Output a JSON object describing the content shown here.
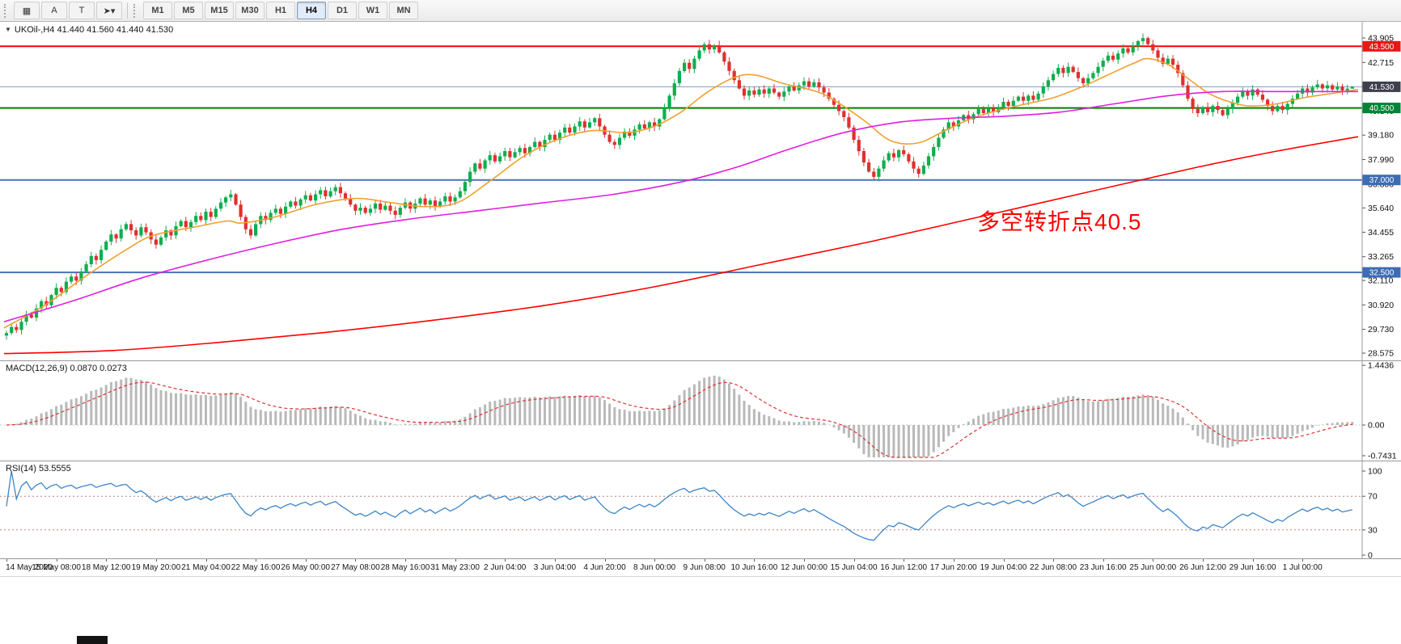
{
  "toolbar": {
    "left_buttons": [
      {
        "name": "charts-button",
        "glyph": "▦"
      },
      {
        "name": "arrow-tool-button",
        "glyph": "A"
      },
      {
        "name": "text-tool-button",
        "glyph": "T"
      },
      {
        "name": "cursor-tool-button",
        "glyph": "➤▾"
      }
    ],
    "timeframes": [
      {
        "label": "M1",
        "active": false
      },
      {
        "label": "M5",
        "active": false
      },
      {
        "label": "M15",
        "active": false
      },
      {
        "label": "M30",
        "active": false
      },
      {
        "label": "H1",
        "active": false
      },
      {
        "label": "H4",
        "active": true
      },
      {
        "label": "D1",
        "active": false
      },
      {
        "label": "W1",
        "active": false
      },
      {
        "label": "MN",
        "active": false
      }
    ]
  },
  "chart": {
    "symbol_line": "UKOil-,H4 41.440 41.560 41.440 41.530",
    "collapse_glyph": "▼",
    "annotation": {
      "text": "多空转折点40.5",
      "color": "#ff0000"
    },
    "y_ticks": [
      43.905,
      42.715,
      41.525,
      40.34,
      39.18,
      37.99,
      36.8,
      35.64,
      34.455,
      33.265,
      32.11,
      30.92,
      29.73,
      28.575
    ],
    "price_levels": [
      {
        "value": 43.5,
        "label": "43.500",
        "badge": "#e81717"
      },
      {
        "value": 40.5,
        "label": "40.500",
        "badge": "#008536"
      },
      {
        "value": 37.0,
        "label": "37.000",
        "badge": "#3c6cb4"
      },
      {
        "value": 32.5,
        "label": "32.500",
        "badge": "#3c6cb4"
      },
      {
        "value": 41.53,
        "label": "41.530",
        "badge": "#3f3f4e"
      }
    ]
  },
  "macd_panel": {
    "label": "MACD(12,26,9) 0.0870 0.0273",
    "params": {
      "fast": 12,
      "slow": 26,
      "signal": 9
    },
    "y_ticks": [
      1.4436,
      0,
      -0.7431
    ],
    "histogram_color": "#b9b9b9",
    "signal_color": "#e03131"
  },
  "rsi_panel": {
    "label": "RSI(14) 53.5555",
    "period": 14,
    "levels": [
      70,
      30
    ],
    "y_ticks": [
      100,
      70,
      30,
      0
    ],
    "line_color": "#3d85c8"
  },
  "time_axis": {
    "labels": [
      "14 May 2020",
      "15 May 08:00",
      "18 May 12:00",
      "19 May 20:00",
      "21 May 04:00",
      "22 May 16:00",
      "26 May 00:00",
      "27 May 08:00",
      "28 May 16:00",
      "31 May 23:00",
      "2 Jun 04:00",
      "3 Jun 04:00",
      "4 Jun 20:00",
      "8 Jun 00:00",
      "9 Jun 08:00",
      "10 Jun 16:00",
      "12 Jun 00:00",
      "15 Jun 04:00",
      "16 Jun 12:00",
      "17 Jun 20:00",
      "19 Jun 04:00",
      "22 Jun 08:00",
      "23 Jun 16:00",
      "25 Jun 00:00",
      "26 Jun 12:00",
      "29 Jun 16:00",
      "1 Jul 00:00"
    ]
  },
  "chart_data": {
    "type": "candlestick",
    "symbol": "UKOil-",
    "timeframe": "H4",
    "title": "UKOil-,H4",
    "ohlc_last": {
      "open": 41.44,
      "high": 41.56,
      "low": 41.44,
      "close": 41.53
    },
    "price_range": {
      "min": 28.575,
      "max": 43.905
    },
    "colors": {
      "up": "#0fae4e",
      "down": "#e03030"
    },
    "closes": [
      29.55,
      29.85,
      29.7,
      30.1,
      30.45,
      30.3,
      30.75,
      31.1,
      30.9,
      31.4,
      31.75,
      31.55,
      32.05,
      32.3,
      32.1,
      32.55,
      32.9,
      33.3,
      33.1,
      33.6,
      34.0,
      34.35,
      34.15,
      34.6,
      34.85,
      34.55,
      34.3,
      34.7,
      34.45,
      34.1,
      33.85,
      34.2,
      34.55,
      34.3,
      34.75,
      35.0,
      34.7,
      34.95,
      35.25,
      35.05,
      35.45,
      35.2,
      35.6,
      35.9,
      36.15,
      36.3,
      35.8,
      35.2,
      34.6,
      34.3,
      34.85,
      35.25,
      35.05,
      35.4,
      35.6,
      35.35,
      35.7,
      35.95,
      35.75,
      36.05,
      36.25,
      36.0,
      36.3,
      36.5,
      36.2,
      36.45,
      36.65,
      36.35,
      36.1,
      35.8,
      35.5,
      35.65,
      35.4,
      35.6,
      35.85,
      35.55,
      35.75,
      35.5,
      35.3,
      35.65,
      35.9,
      35.6,
      35.85,
      36.1,
      35.8,
      36.0,
      35.7,
      35.95,
      36.2,
      35.95,
      36.15,
      36.45,
      36.9,
      37.4,
      37.8,
      37.55,
      37.95,
      38.2,
      37.9,
      38.15,
      38.4,
      38.1,
      38.35,
      38.55,
      38.3,
      38.6,
      38.85,
      38.6,
      38.95,
      39.2,
      38.95,
      39.3,
      39.55,
      39.3,
      39.6,
      39.85,
      39.55,
      39.8,
      40.0,
      39.6,
      39.2,
      38.85,
      38.7,
      39.05,
      39.35,
      39.15,
      39.45,
      39.7,
      39.5,
      39.8,
      39.6,
      39.95,
      40.5,
      41.1,
      41.7,
      42.3,
      42.7,
      42.4,
      42.9,
      43.3,
      43.6,
      43.35,
      43.55,
      43.2,
      42.75,
      42.3,
      41.85,
      41.45,
      41.1,
      41.35,
      41.15,
      41.4,
      41.2,
      41.45,
      41.25,
      41.05,
      41.3,
      41.55,
      41.35,
      41.6,
      41.8,
      41.55,
      41.75,
      41.5,
      41.25,
      40.95,
      40.65,
      40.35,
      40.05,
      39.55,
      38.95,
      38.4,
      37.85,
      37.4,
      37.15,
      37.55,
      37.95,
      38.3,
      38.1,
      38.45,
      38.25,
      37.9,
      37.55,
      37.3,
      37.7,
      38.15,
      38.6,
      39.05,
      39.45,
      39.8,
      39.6,
      39.9,
      40.15,
      39.95,
      40.2,
      40.45,
      40.25,
      40.5,
      40.3,
      40.55,
      40.8,
      40.6,
      40.85,
      41.05,
      40.85,
      41.1,
      40.9,
      41.2,
      41.55,
      41.85,
      42.15,
      42.45,
      42.2,
      42.5,
      42.25,
      41.95,
      41.7,
      41.95,
      42.2,
      42.5,
      42.8,
      43.05,
      42.85,
      43.15,
      43.4,
      43.2,
      43.5,
      43.75,
      43.9,
      43.6,
      43.3,
      42.95,
      42.65,
      42.9,
      42.6,
      42.2,
      41.6,
      40.95,
      40.45,
      40.25,
      40.55,
      40.3,
      40.6,
      40.4,
      40.15,
      40.45,
      40.75,
      41.05,
      41.3,
      41.1,
      41.4,
      41.15,
      40.9,
      40.6,
      40.35,
      40.6,
      40.4,
      40.7,
      40.95,
      41.2,
      41.45,
      41.25,
      41.5,
      41.65,
      41.45,
      41.6,
      41.4,
      41.55,
      41.35,
      41.44,
      41.53
    ],
    "horizontal_lines": [
      {
        "price": 43.5,
        "color": "#ff0000",
        "width": 2
      },
      {
        "price": 41.53,
        "color": "#7a9cc6",
        "width": 1
      },
      {
        "price": 40.5,
        "color": "#008000",
        "width": 2
      },
      {
        "price": 37.0,
        "color": "#4a72b8",
        "width": 2
      },
      {
        "price": 32.5,
        "color": "#4a72b8",
        "width": 2
      }
    ],
    "moving_averages": [
      {
        "name": "ma-fast-orange",
        "color": "#f0a030",
        "points": [
          [
            0,
            29.8
          ],
          [
            0.03,
            30.9
          ],
          [
            0.06,
            32.3
          ],
          [
            0.09,
            33.6
          ],
          [
            0.11,
            34.3
          ],
          [
            0.14,
            34.7
          ],
          [
            0.165,
            35.0
          ],
          [
            0.175,
            34.9
          ],
          [
            0.2,
            35.2
          ],
          [
            0.23,
            35.8
          ],
          [
            0.26,
            36.1
          ],
          [
            0.285,
            35.9
          ],
          [
            0.31,
            35.7
          ],
          [
            0.335,
            35.9
          ],
          [
            0.36,
            37.0
          ],
          [
            0.385,
            38.2
          ],
          [
            0.41,
            39.0
          ],
          [
            0.435,
            39.4
          ],
          [
            0.46,
            39.3
          ],
          [
            0.48,
            39.6
          ],
          [
            0.5,
            40.3
          ],
          [
            0.52,
            41.3
          ],
          [
            0.54,
            42.0
          ],
          [
            0.555,
            42.1
          ],
          [
            0.575,
            41.7
          ],
          [
            0.6,
            41.3
          ],
          [
            0.615,
            40.8
          ],
          [
            0.635,
            39.9
          ],
          [
            0.655,
            38.9
          ],
          [
            0.675,
            38.8
          ],
          [
            0.695,
            39.4
          ],
          [
            0.715,
            40.0
          ],
          [
            0.735,
            40.4
          ],
          [
            0.755,
            40.7
          ],
          [
            0.775,
            41.0
          ],
          [
            0.795,
            41.5
          ],
          [
            0.815,
            42.1
          ],
          [
            0.835,
            42.7
          ],
          [
            0.845,
            42.9
          ],
          [
            0.86,
            42.6
          ],
          [
            0.875,
            41.9
          ],
          [
            0.89,
            41.2
          ],
          [
            0.905,
            40.8
          ],
          [
            0.92,
            40.6
          ],
          [
            0.94,
            40.7
          ],
          [
            0.96,
            41.0
          ],
          [
            0.98,
            41.2
          ],
          [
            1,
            41.4
          ]
        ]
      },
      {
        "name": "ma-mid-magenta",
        "color": "#e01ee0",
        "points": [
          [
            0,
            30.1
          ],
          [
            0.05,
            31.1
          ],
          [
            0.1,
            32.2
          ],
          [
            0.15,
            33.1
          ],
          [
            0.2,
            33.9
          ],
          [
            0.25,
            34.6
          ],
          [
            0.3,
            35.1
          ],
          [
            0.35,
            35.5
          ],
          [
            0.4,
            35.9
          ],
          [
            0.45,
            36.3
          ],
          [
            0.5,
            36.9
          ],
          [
            0.54,
            37.6
          ],
          [
            0.58,
            38.5
          ],
          [
            0.62,
            39.3
          ],
          [
            0.66,
            39.8
          ],
          [
            0.7,
            40.0
          ],
          [
            0.74,
            40.1
          ],
          [
            0.78,
            40.3
          ],
          [
            0.82,
            40.7
          ],
          [
            0.86,
            41.1
          ],
          [
            0.9,
            41.3
          ],
          [
            0.94,
            41.3
          ],
          [
            1,
            41.3
          ]
        ]
      },
      {
        "name": "ma-slow-red",
        "color": "#ff0000",
        "points": [
          [
            0,
            28.55
          ],
          [
            0.08,
            28.7
          ],
          [
            0.16,
            29.1
          ],
          [
            0.24,
            29.6
          ],
          [
            0.32,
            30.2
          ],
          [
            0.4,
            30.9
          ],
          [
            0.48,
            31.8
          ],
          [
            0.56,
            32.9
          ],
          [
            0.64,
            34.0
          ],
          [
            0.72,
            35.2
          ],
          [
            0.8,
            36.4
          ],
          [
            0.88,
            37.6
          ],
          [
            0.94,
            38.4
          ],
          [
            1,
            39.1
          ]
        ]
      }
    ]
  }
}
